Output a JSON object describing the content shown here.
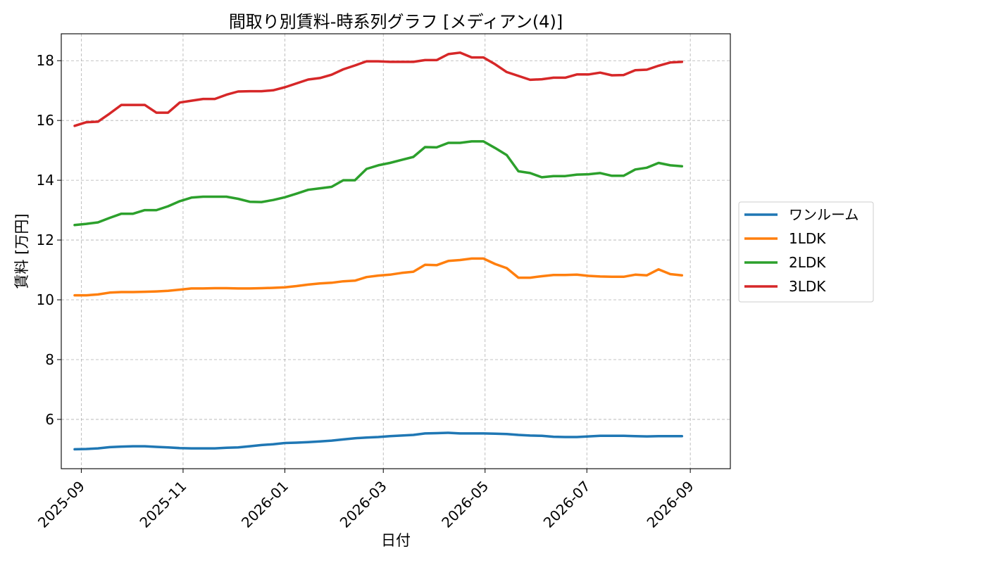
{
  "chart_data": {
    "type": "line",
    "title": "間取り別賃料-時系列グラフ [メディアン(4)]",
    "xlabel": "日付",
    "ylabel": "賃料 [万円]",
    "xlim": [
      "2025-08-20",
      "2026-09-25"
    ],
    "ylim": [
      4.35,
      18.9
    ],
    "grid": true,
    "legend_position": "center-right outside",
    "x_ticks": [
      "2025-09",
      "2025-11",
      "2026-01",
      "2026-03",
      "2026-05",
      "2026-07",
      "2026-09"
    ],
    "y_ticks": [
      6,
      8,
      10,
      12,
      14,
      16,
      18
    ],
    "x": [
      "2025-08-28",
      "2025-09-04",
      "2025-09-11",
      "2025-09-18",
      "2025-09-25",
      "2025-10-02",
      "2025-10-09",
      "2025-10-16",
      "2025-10-23",
      "2025-10-30",
      "2025-11-06",
      "2025-11-13",
      "2025-11-20",
      "2025-11-27",
      "2025-12-04",
      "2025-12-11",
      "2025-12-18",
      "2025-12-25",
      "2026-01-01",
      "2026-01-08",
      "2026-01-15",
      "2026-01-22",
      "2026-01-29",
      "2026-02-05",
      "2026-02-12",
      "2026-02-19",
      "2026-02-26",
      "2026-03-05",
      "2026-03-12",
      "2026-03-19",
      "2026-03-26",
      "2026-04-02",
      "2026-04-09",
      "2026-04-16",
      "2026-04-23",
      "2026-04-30",
      "2026-05-07",
      "2026-05-14",
      "2026-05-21",
      "2026-05-28",
      "2026-06-04",
      "2026-06-11",
      "2026-06-18",
      "2026-06-25",
      "2026-07-02",
      "2026-07-09",
      "2026-07-16",
      "2026-07-23",
      "2026-07-30",
      "2026-08-06",
      "2026-08-13",
      "2026-08-20",
      "2026-08-27"
    ],
    "series": [
      {
        "name": "ワンルーム",
        "color": "#1f77b4",
        "values": [
          5.0,
          5.01,
          5.03,
          5.07,
          5.09,
          5.1,
          5.1,
          5.08,
          5.06,
          5.04,
          5.03,
          5.03,
          5.03,
          5.05,
          5.06,
          5.1,
          5.14,
          5.17,
          5.21,
          5.22,
          5.24,
          5.26,
          5.29,
          5.33,
          5.37,
          5.39,
          5.41,
          5.44,
          5.46,
          5.48,
          5.53,
          5.54,
          5.55,
          5.53,
          5.53,
          5.53,
          5.52,
          5.51,
          5.48,
          5.46,
          5.45,
          5.42,
          5.41,
          5.41,
          5.43,
          5.45,
          5.45,
          5.45,
          5.44,
          5.43,
          5.44,
          5.44,
          5.44
        ]
      },
      {
        "name": "1LDK",
        "color": "#ff7f0e",
        "values": [
          10.15,
          10.15,
          10.18,
          10.24,
          10.26,
          10.26,
          10.27,
          10.28,
          10.3,
          10.34,
          10.38,
          10.38,
          10.39,
          10.39,
          10.38,
          10.38,
          10.39,
          10.4,
          10.42,
          10.46,
          10.51,
          10.55,
          10.57,
          10.62,
          10.64,
          10.76,
          10.81,
          10.84,
          10.9,
          10.94,
          11.17,
          11.16,
          11.3,
          11.33,
          11.38,
          11.38,
          11.2,
          11.06,
          10.74,
          10.74,
          10.79,
          10.83,
          10.83,
          10.84,
          10.8,
          10.78,
          10.77,
          10.77,
          10.84,
          10.82,
          11.02,
          10.86,
          10.82
        ]
      },
      {
        "name": "2LDK",
        "color": "#2ca02c",
        "values": [
          12.5,
          12.54,
          12.59,
          12.74,
          12.88,
          12.88,
          13.0,
          13.0,
          13.13,
          13.3,
          13.42,
          13.45,
          13.45,
          13.45,
          13.38,
          13.28,
          13.27,
          13.34,
          13.43,
          13.55,
          13.68,
          13.73,
          13.78,
          14.0,
          14.0,
          14.38,
          14.5,
          14.58,
          14.68,
          14.78,
          15.11,
          15.1,
          15.25,
          15.25,
          15.3,
          15.3,
          15.08,
          14.84,
          14.3,
          14.24,
          14.1,
          14.14,
          14.14,
          14.19,
          14.2,
          14.24,
          14.15,
          14.15,
          14.36,
          14.42,
          14.58,
          14.5,
          14.47
        ]
      },
      {
        "name": "3LDK",
        "color": "#d62728",
        "values": [
          15.82,
          15.94,
          15.96,
          16.23,
          16.52,
          16.52,
          16.52,
          16.26,
          16.26,
          16.6,
          16.66,
          16.72,
          16.72,
          16.86,
          16.97,
          16.98,
          16.98,
          17.01,
          17.11,
          17.24,
          17.37,
          17.42,
          17.53,
          17.71,
          17.84,
          17.98,
          17.98,
          17.96,
          17.96,
          17.96,
          18.02,
          18.02,
          18.22,
          18.27,
          18.11,
          18.11,
          17.88,
          17.62,
          17.49,
          17.36,
          17.38,
          17.43,
          17.43,
          17.54,
          17.54,
          17.6,
          17.51,
          17.52,
          17.68,
          17.7,
          17.83,
          17.94,
          17.96
        ]
      }
    ]
  }
}
